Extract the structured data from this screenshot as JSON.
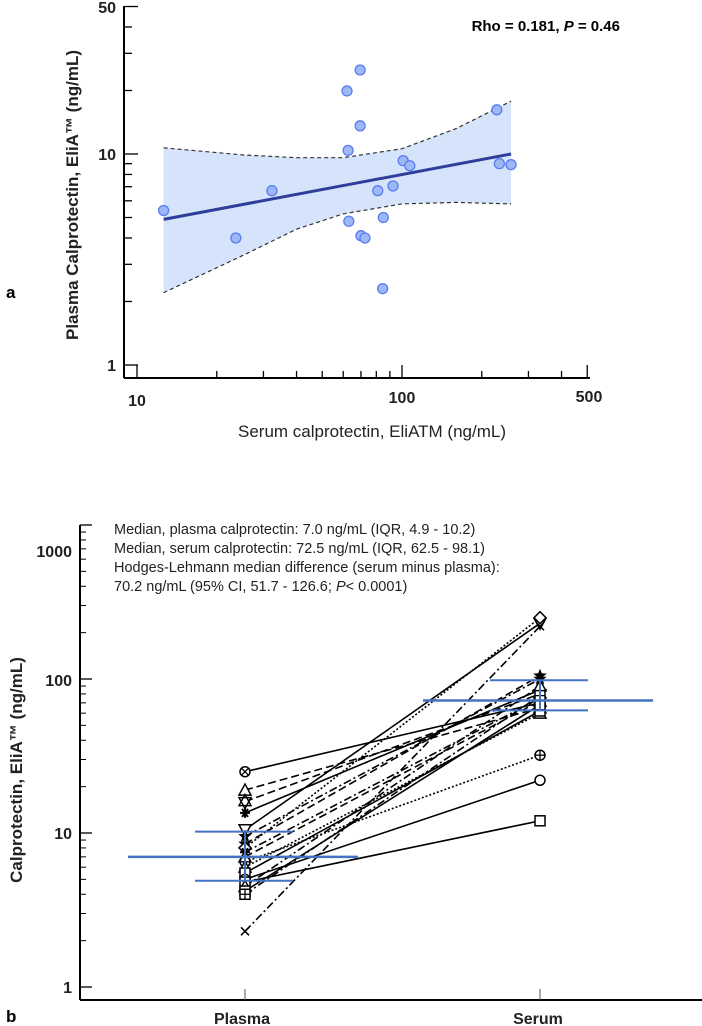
{
  "chart_data": [
    {
      "panel": "a",
      "type": "scatter",
      "xlabel": "Serum calprotectin, EliATM (ng/mL)",
      "ylabel": "Plasma Calprotectin, EliA™ (ng/mL)",
      "x_scale": "log",
      "y_scale": "log",
      "xlim": [
        10,
        500
      ],
      "ylim": [
        1,
        50
      ],
      "x_ticks": [
        "10",
        "100",
        "500"
      ],
      "y_ticks": [
        "1",
        "10",
        "50"
      ],
      "annotation": {
        "prefix": "Rho = 0.181, ",
        "p_label": "P",
        "suffix": " = 0.46"
      },
      "point_color": "#9db8f7",
      "line_color": "#2e3f9a",
      "band_color": "#d6e4fb",
      "points": [
        [
          12.6,
          5.4
        ],
        [
          23.6,
          4.0
        ],
        [
          32.3,
          6.7
        ],
        [
          62,
          19.9
        ],
        [
          69.5,
          25
        ],
        [
          69.5,
          13.6
        ],
        [
          62.6,
          10.4
        ],
        [
          63,
          4.8
        ],
        [
          70,
          4.1
        ],
        [
          72.5,
          4.0
        ],
        [
          81,
          6.7
        ],
        [
          92.5,
          7.05
        ],
        [
          85,
          5.0
        ],
        [
          101,
          9.3
        ],
        [
          107,
          8.8
        ],
        [
          84.5,
          2.3
        ],
        [
          228,
          16.2
        ],
        [
          233,
          9.0
        ],
        [
          258,
          8.9
        ]
      ],
      "fit_line": [
        [
          12.6,
          4.9
        ],
        [
          258,
          10.0
        ]
      ],
      "ci_upper": [
        [
          12.6,
          10.7
        ],
        [
          25,
          9.9
        ],
        [
          40,
          9.6
        ],
        [
          60,
          9.6
        ],
        [
          100,
          10.6
        ],
        [
          160,
          13.2
        ],
        [
          258,
          17.8
        ]
      ],
      "ci_lower": [
        [
          12.6,
          2.2
        ],
        [
          25,
          3.3
        ],
        [
          40,
          4.4
        ],
        [
          60,
          5.2
        ],
        [
          100,
          5.8
        ],
        [
          160,
          5.9
        ],
        [
          258,
          5.8
        ]
      ],
      "grid": false
    },
    {
      "panel": "b",
      "type": "line",
      "ylabel": "Calprotectin, EliA™ (ng/mL)",
      "y_scale": "log",
      "ylim": [
        1,
        1000
      ],
      "categories": [
        "Plasma",
        "Serum"
      ],
      "y_ticks": [
        "1",
        "10",
        "100",
        "1000"
      ],
      "annotations": [
        "Median, plasma calprotectin: 7.0 ng/mL (IQR, 4.9 - 10.2)",
        "Median, serum calprotectin: 72.5  ng/mL (IQR, 62.5 - 98.1)",
        "Hodges-Lehmann median difference (serum minus plasma):"
      ],
      "annotation_last": {
        "prefix": "70.2 ng/mL (95% CI, 51.7 - 126.6; ",
        "p_label": "P",
        "suffix": "< 0.0001)"
      },
      "median_color": "#4472c4",
      "plasma_summary": {
        "median": 7.0,
        "q1": 4.9,
        "q3": 10.2
      },
      "serum_summary": {
        "median": 72.5,
        "q1": 62.5,
        "q3": 98.1
      },
      "pairs": [
        {
          "plasma": 25,
          "serum": 70,
          "style": "solid",
          "marker": "circle-x"
        },
        {
          "plasma": 19,
          "serum": 65,
          "style": "dashed",
          "marker": "triangle"
        },
        {
          "plasma": 16,
          "serum": 80,
          "style": "dashed",
          "marker": "star6"
        },
        {
          "plasma": 13.5,
          "serum": 85,
          "style": "solid",
          "marker": "asterisk"
        },
        {
          "plasma": 10.5,
          "serum": 230,
          "style": "solid",
          "marker": "triangle-down"
        },
        {
          "plasma": 9.5,
          "serum": 100,
          "style": "dashdot",
          "marker": "star"
        },
        {
          "plasma": 8.5,
          "serum": 105,
          "style": "dashed",
          "marker": "star"
        },
        {
          "plasma": 8,
          "serum": 250,
          "style": "dotted",
          "marker": "diamond"
        },
        {
          "plasma": 7.5,
          "serum": 75,
          "style": "dashdot",
          "marker": "asterisk"
        },
        {
          "plasma": 7,
          "serum": 72,
          "style": "dashed",
          "marker": "triangle"
        },
        {
          "plasma": 6.5,
          "serum": 32,
          "style": "dotted",
          "marker": "circle-plus"
        },
        {
          "plasma": 6,
          "serum": 60,
          "style": "dotted",
          "marker": "triangle"
        },
        {
          "plasma": 5.5,
          "serum": 62,
          "style": "solid",
          "marker": "square"
        },
        {
          "plasma": 5,
          "serum": 22,
          "style": "solid",
          "marker": "circle"
        },
        {
          "plasma": 4.8,
          "serum": 12,
          "style": "solid",
          "marker": "square"
        },
        {
          "plasma": 4.5,
          "serum": 90,
          "style": "dashdot",
          "marker": "triangle"
        },
        {
          "plasma": 4.2,
          "serum": 68,
          "style": "solid",
          "marker": "square"
        },
        {
          "plasma": 4.0,
          "serum": 78,
          "style": "dashdot",
          "marker": "square-plus"
        },
        {
          "plasma": 2.3,
          "serum": 220,
          "style": "dashdot",
          "marker": "x"
        }
      ],
      "grid": false
    }
  ],
  "panels": {
    "a": "a",
    "b": "b"
  }
}
